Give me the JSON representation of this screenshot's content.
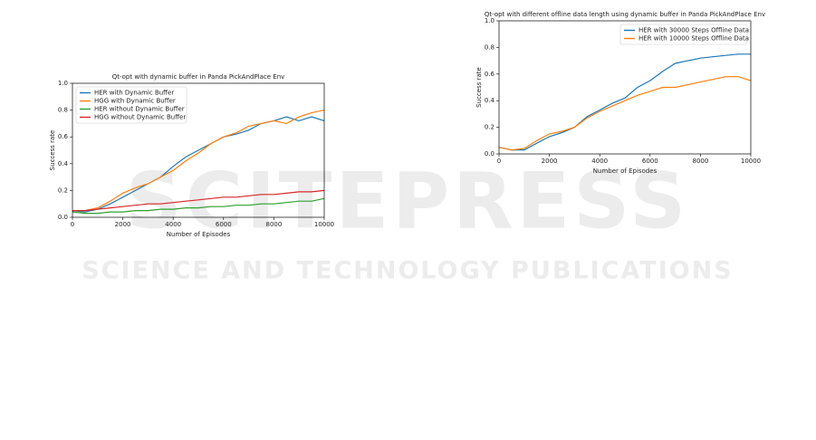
{
  "watermark": {
    "title": "SCITEPRESS",
    "subtitle": "SCIENCE AND TECHNOLOGY PUBLICATIONS"
  },
  "chart_data": [
    {
      "type": "line",
      "title": "Qt-opt with dynamic buffer in Panda PickAndPlace Env",
      "x_label": "Number of Episodes",
      "y_label": "Success rate",
      "x": [
        0,
        500,
        1000,
        1500,
        2000,
        2500,
        3000,
        3500,
        4000,
        4500,
        5000,
        5500,
        6000,
        6500,
        7000,
        7500,
        8000,
        8500,
        9000,
        9500,
        10000
      ],
      "series": [
        {
          "name": "HER with Dynamic Buffer",
          "color": "#1f77b4",
          "values": [
            0.05,
            0.04,
            0.06,
            0.1,
            0.15,
            0.2,
            0.25,
            0.3,
            0.38,
            0.45,
            0.5,
            0.55,
            0.6,
            0.62,
            0.65,
            0.7,
            0.72,
            0.75,
            0.72,
            0.75,
            0.72
          ]
        },
        {
          "name": "HGG with Dynamic Buffer",
          "color": "#ff7f0e",
          "values": [
            0.05,
            0.05,
            0.07,
            0.12,
            0.18,
            0.22,
            0.25,
            0.3,
            0.35,
            0.42,
            0.48,
            0.55,
            0.6,
            0.63,
            0.68,
            0.7,
            0.72,
            0.7,
            0.75,
            0.78,
            0.8
          ]
        },
        {
          "name": "HER without Dynamic Buffer",
          "color": "#2ca02c",
          "values": [
            0.04,
            0.03,
            0.03,
            0.04,
            0.04,
            0.05,
            0.05,
            0.06,
            0.06,
            0.07,
            0.07,
            0.08,
            0.08,
            0.09,
            0.09,
            0.1,
            0.1,
            0.11,
            0.12,
            0.12,
            0.14
          ]
        },
        {
          "name": "HGG without Dynamic Buffer",
          "color": "#d62728",
          "values": [
            0.05,
            0.05,
            0.06,
            0.07,
            0.08,
            0.09,
            0.1,
            0.1,
            0.11,
            0.12,
            0.13,
            0.14,
            0.15,
            0.15,
            0.16,
            0.17,
            0.17,
            0.18,
            0.19,
            0.19,
            0.2
          ]
        }
      ],
      "xlim": [
        0,
        10000
      ],
      "xticks": [
        0,
        2000,
        4000,
        6000,
        8000,
        10000
      ],
      "ylim": [
        0,
        1
      ],
      "yticks": [
        {
          "value": 0,
          "label": "0.0"
        },
        {
          "value": 0.2,
          "label": "0.2"
        },
        {
          "value": 0.4,
          "label": "0.4"
        },
        {
          "value": 0.6,
          "label": "0.6"
        },
        {
          "value": 0.8,
          "label": "0.8"
        },
        {
          "value": 1,
          "label": "1.0"
        }
      ],
      "legend": "upper left"
    },
    {
      "type": "line",
      "title": "Qt-opt with different offline data length using dynamic buffer in Panda PickAndPlace Env",
      "x_label": "Number of Episodes",
      "y_label": "Success rate",
      "x": [
        0,
        500,
        1000,
        1500,
        2000,
        2500,
        3000,
        3500,
        4000,
        4500,
        5000,
        5500,
        6000,
        6500,
        7000,
        7500,
        8000,
        8500,
        9000,
        9500,
        10000
      ],
      "series": [
        {
          "name": "HER with 30000 Steps Offline Data",
          "color": "#1f77b4",
          "values": [
            0.05,
            0.03,
            0.03,
            0.08,
            0.13,
            0.16,
            0.2,
            0.28,
            0.33,
            0.38,
            0.42,
            0.5,
            0.55,
            0.62,
            0.68,
            0.7,
            0.72,
            0.73,
            0.74,
            0.75,
            0.75
          ]
        },
        {
          "name": "HER with 10000 Steps Offline Data",
          "color": "#ff7f0e",
          "values": [
            0.05,
            0.03,
            0.04,
            0.1,
            0.15,
            0.17,
            0.2,
            0.27,
            0.32,
            0.36,
            0.4,
            0.44,
            0.47,
            0.5,
            0.5,
            0.52,
            0.54,
            0.56,
            0.58,
            0.58,
            0.55
          ]
        }
      ],
      "xlim": [
        0,
        10000
      ],
      "xticks": [
        0,
        2000,
        4000,
        6000,
        8000,
        10000
      ],
      "ylim": [
        0,
        1
      ],
      "yticks": [
        {
          "value": 0,
          "label": "0.0"
        },
        {
          "value": 0.2,
          "label": "0.2"
        },
        {
          "value": 0.4,
          "label": "0.4"
        },
        {
          "value": 0.6,
          "label": "0.6"
        },
        {
          "value": 0.8,
          "label": "0.8"
        },
        {
          "value": 1,
          "label": "1.0"
        }
      ],
      "legend": "upper right"
    }
  ]
}
